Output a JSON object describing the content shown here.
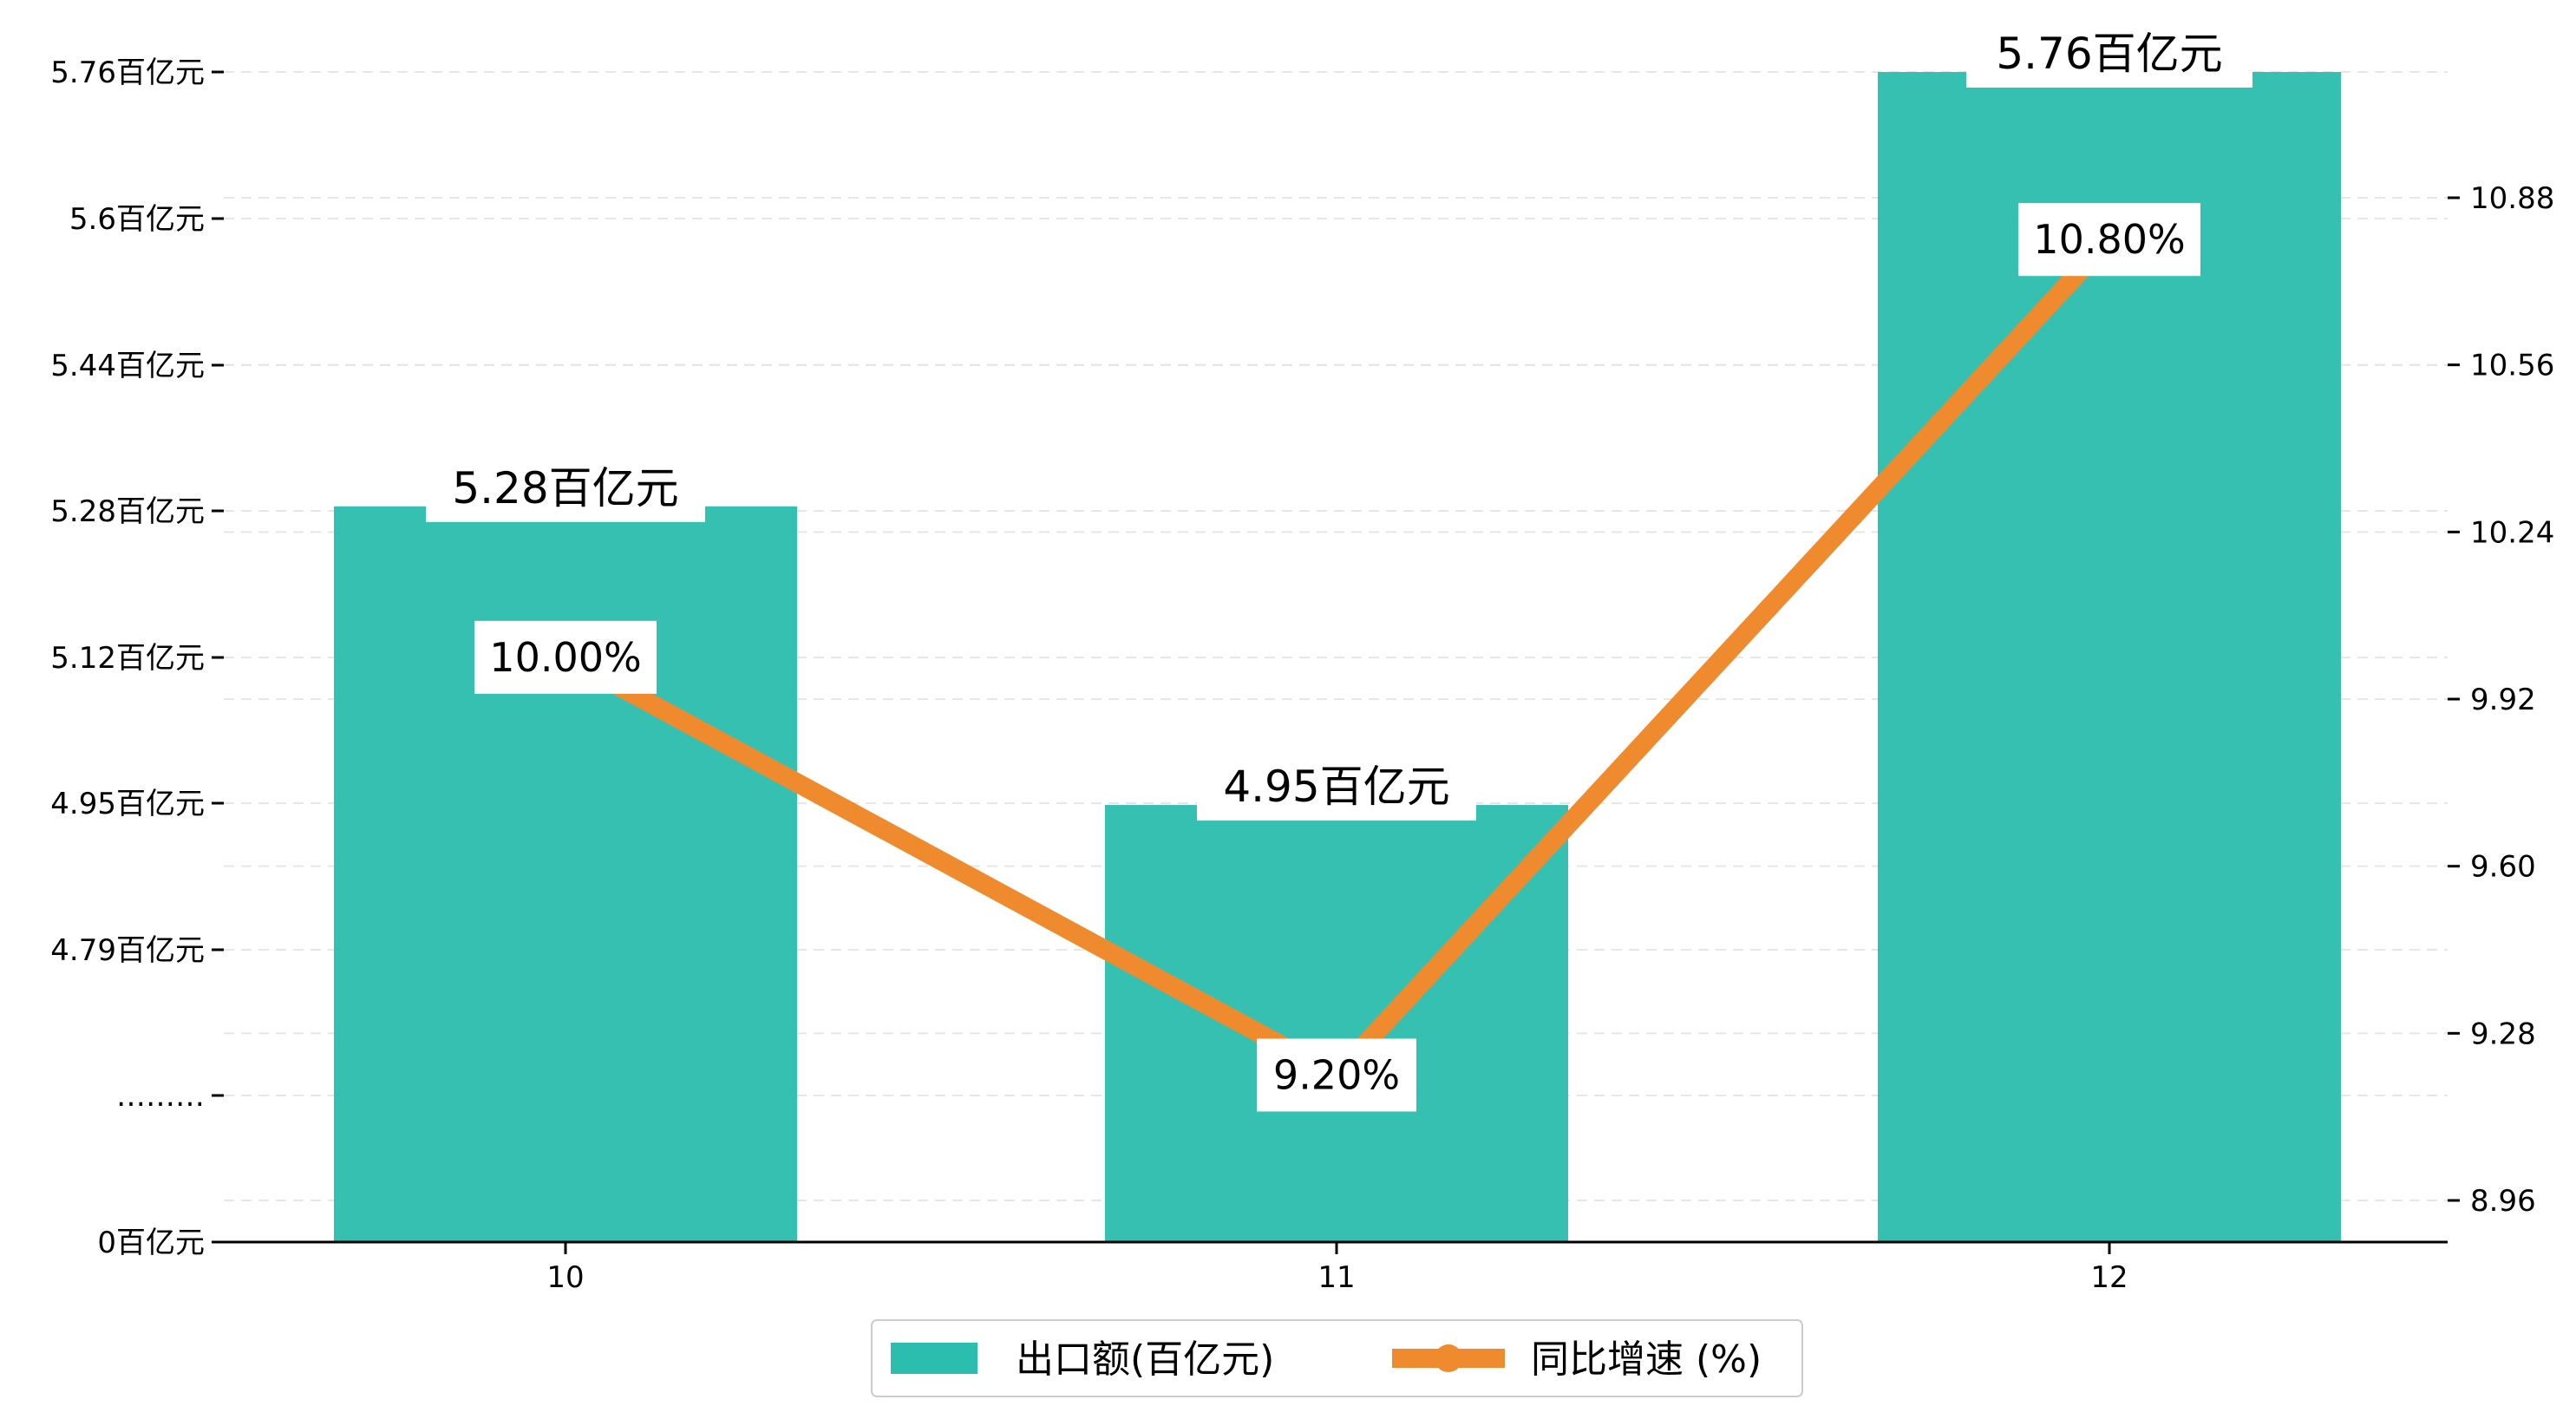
{
  "colors": {
    "bar": "#2bbdae",
    "line": "#f08a2e",
    "grid": "#e6e6e6",
    "axis": "#000000"
  },
  "chart_data": {
    "type": "bar",
    "categories": [
      "10",
      "11",
      "12"
    ],
    "series": [
      {
        "name": "出口额(百亿元)",
        "type": "bar",
        "axis": "left",
        "values": [
          5.28,
          4.95,
          5.76
        ]
      },
      {
        "name": "同比增速 (%)",
        "type": "line",
        "axis": "right",
        "values": [
          10.0,
          9.2,
          10.8
        ]
      }
    ],
    "bar_labels": [
      "5.28百亿元",
      "4.95百亿元",
      "5.76百亿元"
    ],
    "line_labels": [
      "10.00%",
      "9.20%",
      "10.80%"
    ],
    "left_axis": {
      "broken": true,
      "ticks": [
        {
          "value": 0,
          "label": "0百亿元"
        },
        {
          "value": null,
          "label": "………"
        },
        {
          "value": 4.79,
          "label": "4.79百亿元"
        },
        {
          "value": 4.95,
          "label": "4.95百亿元"
        },
        {
          "value": 5.12,
          "label": "5.12百亿元"
        },
        {
          "value": 5.28,
          "label": "5.28百亿元"
        },
        {
          "value": 5.44,
          "label": "5.44百亿元"
        },
        {
          "value": 5.6,
          "label": "5.6百亿元"
        },
        {
          "value": 5.76,
          "label": "5.76百亿元"
        }
      ]
    },
    "right_axis": {
      "ylim": [
        8.8,
        11.1
      ],
      "ticks": [
        8.96,
        9.28,
        9.6,
        9.92,
        10.24,
        10.56,
        10.88
      ],
      "tick_labels": [
        "8.96",
        "9.28",
        "9.60",
        "9.92",
        "10.24",
        "10.56",
        "10.88"
      ]
    },
    "grid": true,
    "legend_position": "bottom-center",
    "legend": [
      "出口额(百亿元)",
      "同比增速 (%)"
    ]
  }
}
